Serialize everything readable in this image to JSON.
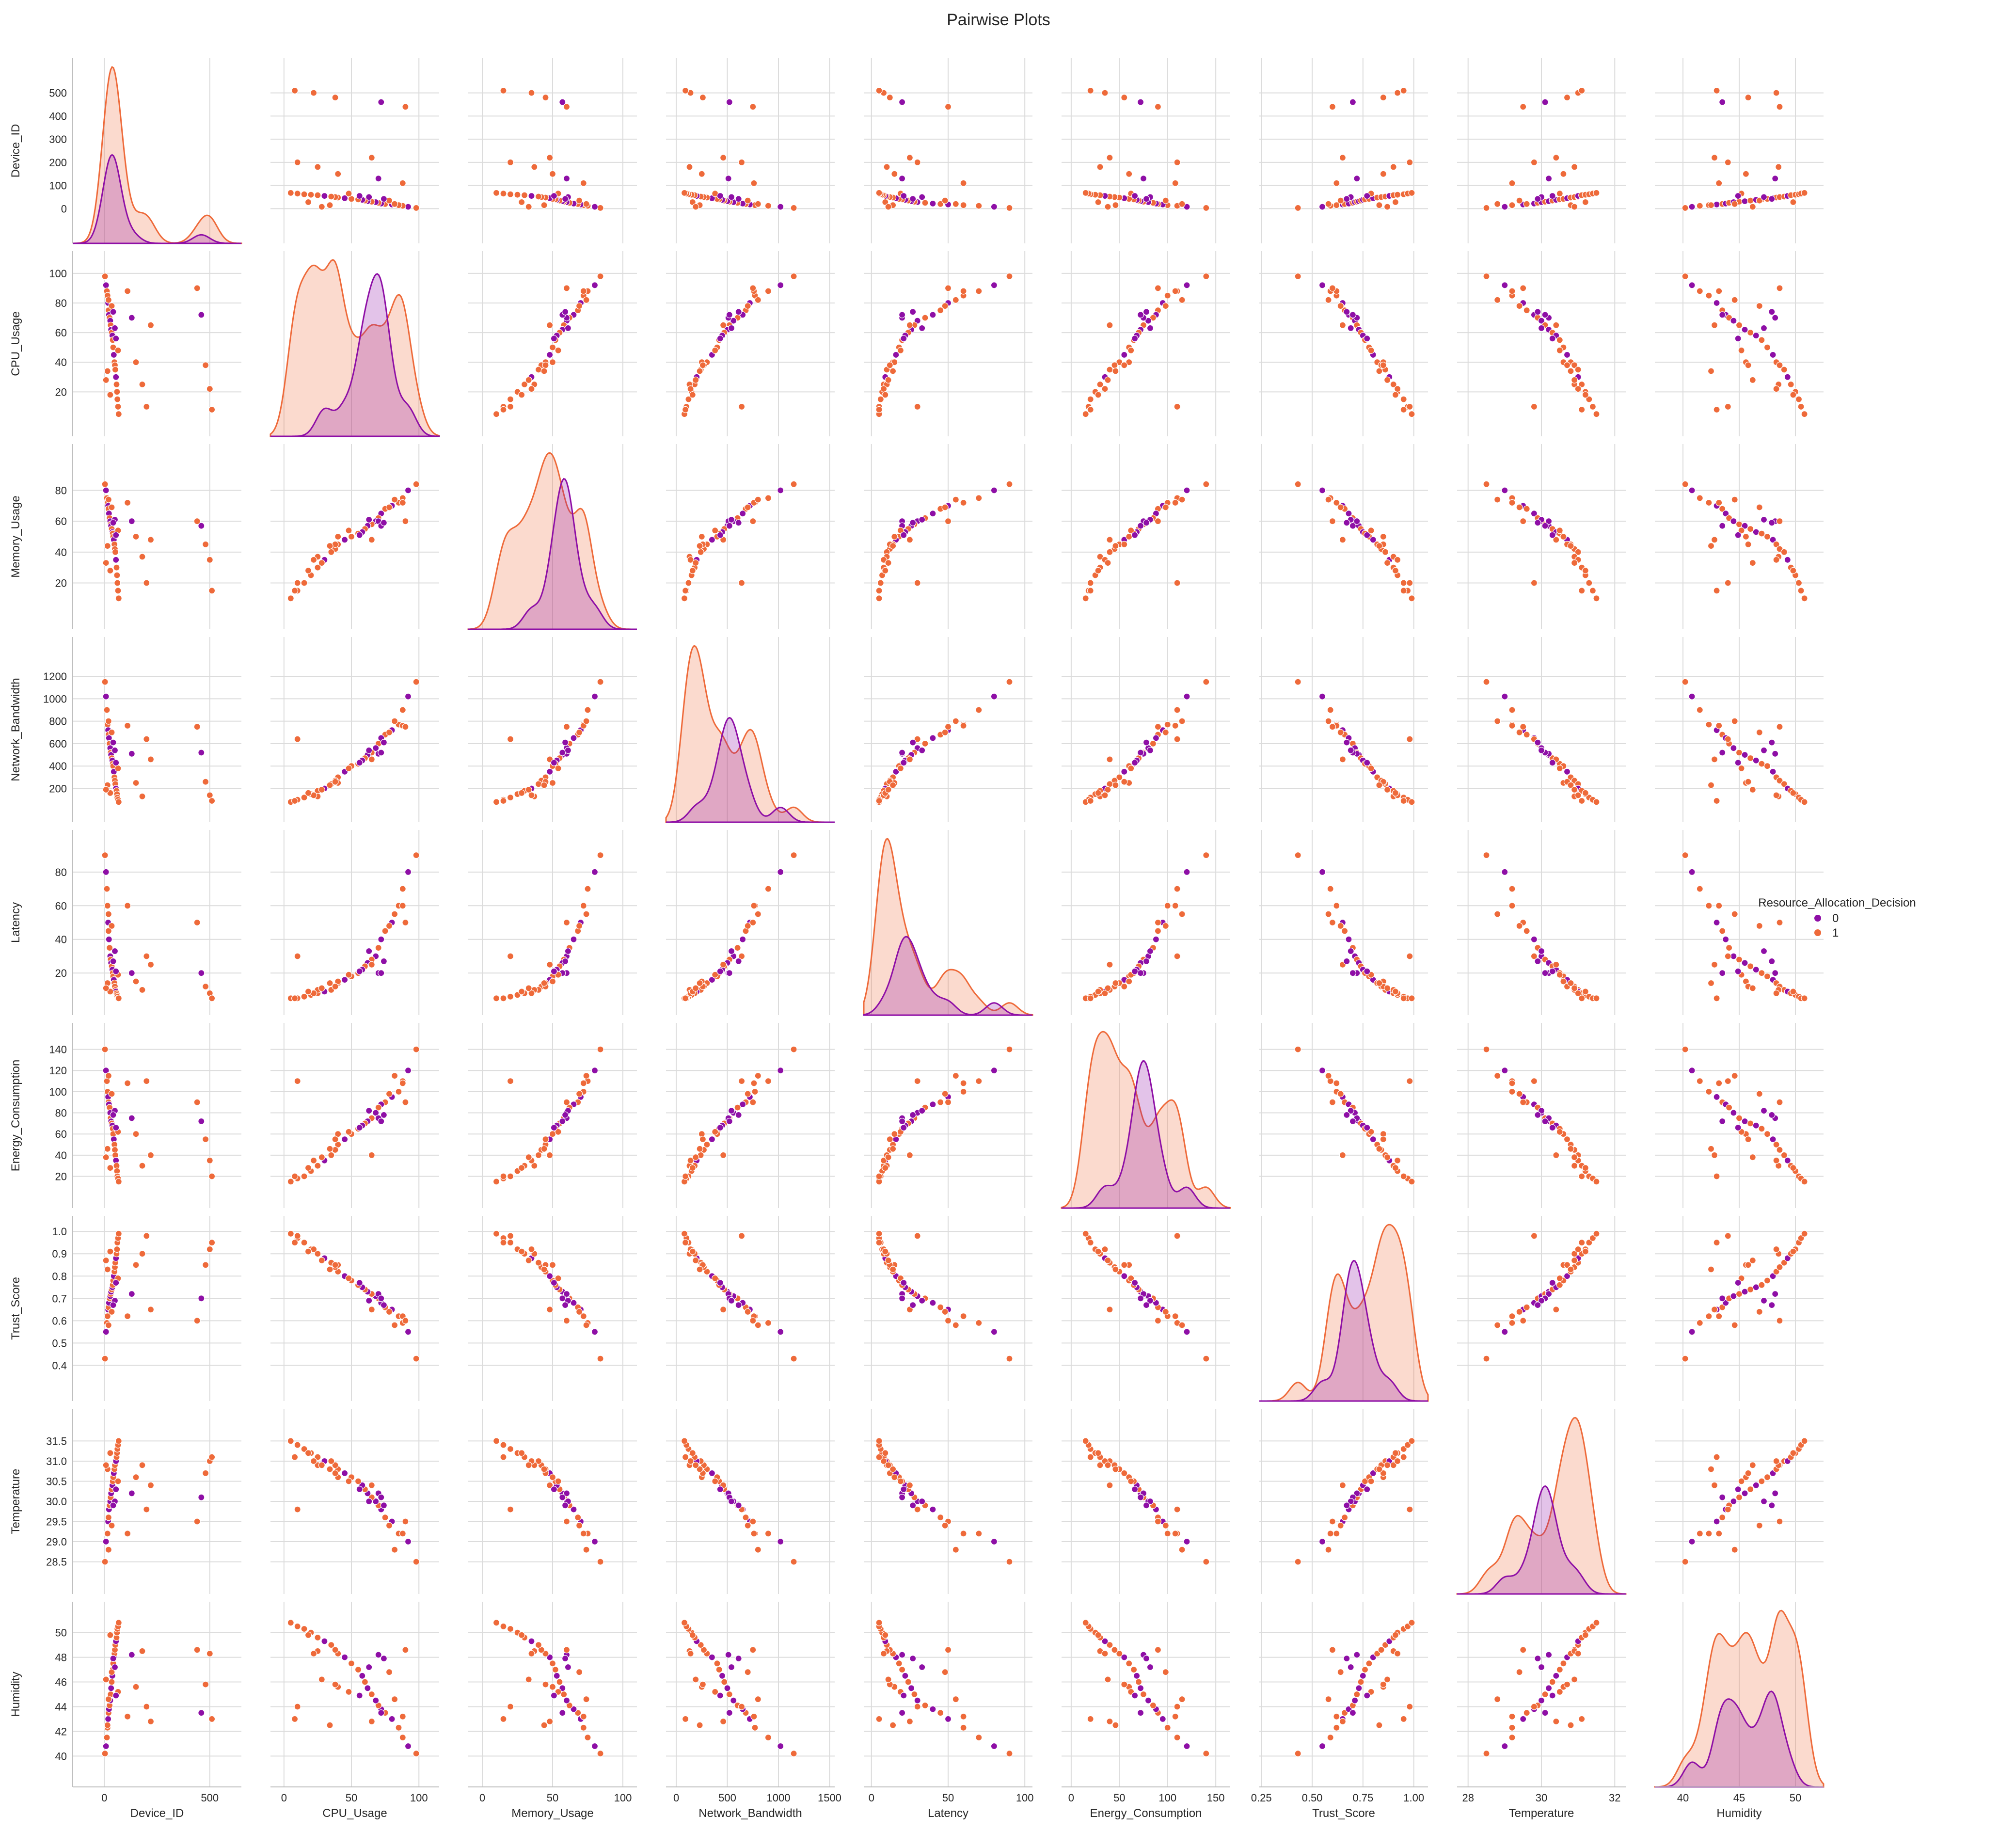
{
  "chart_data": {
    "type": "scatter",
    "title": "Pairwise Plots",
    "legend": {
      "title": "Resource_Allocation_Decision",
      "placement": "right",
      "entries": [
        {
          "label": "0",
          "color": "#8e0fa6"
        },
        {
          "label": "1",
          "color": "#ee6a3a"
        }
      ]
    },
    "grid": true,
    "diagonal": "kde",
    "variables": [
      {
        "name": "Device_ID",
        "lim": [
          -150,
          650
        ],
        "ticks": [
          0,
          500
        ],
        "tick_labels": [
          "0",
          "500"
        ],
        "yticks": [
          0,
          100,
          200,
          300,
          400,
          500
        ]
      },
      {
        "name": "CPU_Usage",
        "lim": [
          -10,
          115
        ],
        "ticks": [
          0,
          50,
          100
        ],
        "tick_labels": [
          "0",
          "50",
          "100"
        ],
        "yticks": [
          20,
          40,
          60,
          80,
          100
        ]
      },
      {
        "name": "Memory_Usage",
        "lim": [
          -10,
          110
        ],
        "ticks": [
          0,
          50,
          100
        ],
        "tick_labels": [
          "0",
          "50",
          "100"
        ],
        "yticks": [
          20,
          40,
          60,
          80
        ]
      },
      {
        "name": "Network_Bandwidth",
        "lim": [
          -100,
          1550
        ],
        "ticks": [
          0,
          500,
          1000,
          1500
        ],
        "tick_labels": [
          "0",
          "500",
          "1000",
          "1500"
        ],
        "yticks": [
          200,
          400,
          600,
          800,
          1000,
          1200
        ]
      },
      {
        "name": "Latency",
        "lim": [
          -5,
          105
        ],
        "ticks": [
          0,
          50,
          100
        ],
        "tick_labels": [
          "0",
          "50",
          "100"
        ],
        "yticks": [
          20,
          40,
          60,
          80
        ]
      },
      {
        "name": "Energy_Consumption",
        "lim": [
          -10,
          165
        ],
        "ticks": [
          0,
          50,
          100,
          150
        ],
        "tick_labels": [
          "0",
          "50",
          "100",
          "150"
        ],
        "yticks": [
          20,
          40,
          60,
          80,
          100,
          120,
          140
        ]
      },
      {
        "name": "Trust_Score",
        "lim": [
          0.24,
          1.07
        ],
        "ticks": [
          0.25,
          0.5,
          0.75,
          1.0
        ],
        "tick_labels": [
          "0.25",
          "0.50",
          "0.75",
          "1.00"
        ],
        "yticks": [
          0.4,
          0.5,
          0.6,
          0.7,
          0.8,
          0.9,
          1.0
        ],
        "ytick_labels": [
          "0.4",
          "0.5",
          "0.6",
          "0.7",
          "0.8",
          "0.9",
          "1.0"
        ]
      },
      {
        "name": "Temperature",
        "lim": [
          27.7,
          32.3
        ],
        "ticks": [
          28,
          30,
          32
        ],
        "tick_labels": [
          "28",
          "30",
          "32"
        ],
        "yticks": [
          28.5,
          29.0,
          29.5,
          30.0,
          30.5,
          31.0,
          31.5
        ],
        "ytick_labels": [
          "28.5",
          "29.0",
          "29.5",
          "30.0",
          "30.5",
          "31.0",
          "31.5"
        ]
      },
      {
        "name": "Humidity",
        "lim": [
          37.5,
          52.5
        ],
        "ticks": [
          40,
          45,
          50
        ],
        "tick_labels": [
          "40",
          "45",
          "50"
        ],
        "yticks": [
          40,
          42,
          44,
          46,
          48,
          50
        ]
      }
    ],
    "points": [
      {
        "v": [
          3,
          98,
          84,
          1150,
          90,
          140,
          0.43,
          28.5,
          40.2
        ],
        "c": 1
      },
      {
        "v": [
          8,
          92,
          80,
          1020,
          80,
          120,
          0.55,
          29.0,
          40.8
        ],
        "c": 0
      },
      {
        "v": [
          12,
          88,
          75,
          900,
          70,
          110,
          0.59,
          29.2,
          41.5
        ],
        "c": 1
      },
      {
        "v": [
          15,
          85,
          72,
          770,
          60,
          100,
          0.62,
          29.2,
          42.3
        ],
        "c": 1
      },
      {
        "v": [
          18,
          80,
          70,
          720,
          50,
          95,
          0.65,
          29.5,
          43.0
        ],
        "c": 0
      },
      {
        "v": [
          20,
          75,
          68,
          680,
          45,
          90,
          0.66,
          29.6,
          43.5
        ],
        "c": 1
      },
      {
        "v": [
          22,
          72,
          65,
          650,
          40,
          88,
          0.68,
          29.8,
          43.8
        ],
        "c": 0
      },
      {
        "v": [
          25,
          70,
          62,
          600,
          35,
          85,
          0.7,
          29.9,
          44.1
        ],
        "c": 1
      },
      {
        "v": [
          28,
          68,
          60,
          560,
          30,
          80,
          0.71,
          30.0,
          44.5
        ],
        "c": 0
      },
      {
        "v": [
          30,
          65,
          58,
          520,
          28,
          75,
          0.72,
          30.1,
          45.0
        ],
        "c": 1
      },
      {
        "v": [
          32,
          62,
          57,
          500,
          26,
          72,
          0.73,
          30.2,
          45.5
        ],
        "c": 0
      },
      {
        "v": [
          35,
          60,
          55,
          470,
          24,
          70,
          0.74,
          30.3,
          46.0
        ],
        "c": 1
      },
      {
        "v": [
          38,
          58,
          53,
          450,
          22,
          68,
          0.75,
          30.4,
          46.5
        ],
        "c": 0
      },
      {
        "v": [
          40,
          55,
          52,
          420,
          20,
          65,
          0.76,
          30.5,
          47.0
        ],
        "c": 1
      },
      {
        "v": [
          42,
          50,
          50,
          400,
          18,
          60,
          0.78,
          30.6,
          47.5
        ],
        "c": 1
      },
      {
        "v": [
          45,
          45,
          48,
          350,
          16,
          55,
          0.8,
          30.7,
          48.0
        ],
        "c": 0
      },
      {
        "v": [
          48,
          40,
          45,
          300,
          14,
          50,
          0.82,
          30.8,
          48.3
        ],
        "c": 1
      },
      {
        "v": [
          50,
          38,
          42,
          270,
          12,
          45,
          0.84,
          30.9,
          48.6
        ],
        "c": 1
      },
      {
        "v": [
          52,
          35,
          40,
          240,
          10,
          40,
          0.86,
          31.0,
          49.0
        ],
        "c": 1
      },
      {
        "v": [
          55,
          30,
          35,
          200,
          9,
          35,
          0.88,
          31.0,
          49.3
        ],
        "c": 0
      },
      {
        "v": [
          58,
          25,
          30,
          180,
          8,
          30,
          0.9,
          31.1,
          49.6
        ],
        "c": 1
      },
      {
        "v": [
          60,
          20,
          25,
          150,
          7,
          25,
          0.92,
          31.2,
          50.0
        ],
        "c": 1
      },
      {
        "v": [
          62,
          15,
          20,
          120,
          6,
          20,
          0.95,
          31.3,
          50.3
        ],
        "c": 1
      },
      {
        "v": [
          65,
          10,
          15,
          100,
          5,
          18,
          0.97,
          31.4,
          50.5
        ],
        "c": 1
      },
      {
        "v": [
          68,
          5,
          10,
          80,
          5,
          15,
          0.99,
          31.5,
          50.8
        ],
        "c": 1
      },
      {
        "v": [
          110,
          88,
          72,
          760,
          60,
          108,
          0.62,
          29.2,
          43.2
        ],
        "c": 1
      },
      {
        "v": [
          130,
          70,
          60,
          510,
          20,
          75,
          0.72,
          30.2,
          48.2
        ],
        "c": 0
      },
      {
        "v": [
          150,
          40,
          50,
          250,
          15,
          60,
          0.85,
          30.6,
          45.6
        ],
        "c": 1
      },
      {
        "v": [
          180,
          25,
          37,
          130,
          10,
          30,
          0.9,
          30.9,
          48.5
        ],
        "c": 1
      },
      {
        "v": [
          200,
          10,
          20,
          640,
          30,
          110,
          0.98,
          29.8,
          44.0
        ],
        "c": 1
      },
      {
        "v": [
          220,
          65,
          48,
          460,
          25,
          40,
          0.65,
          30.4,
          42.8
        ],
        "c": 1
      },
      {
        "v": [
          440,
          90,
          60,
          750,
          50,
          90,
          0.6,
          29.5,
          48.6
        ],
        "c": 1
      },
      {
        "v": [
          460,
          72,
          57,
          520,
          20,
          72,
          0.7,
          30.1,
          43.5
        ],
        "c": 0
      },
      {
        "v": [
          480,
          38,
          45,
          260,
          12,
          55,
          0.85,
          30.7,
          45.8
        ],
        "c": 1
      },
      {
        "v": [
          500,
          22,
          35,
          140,
          8,
          35,
          0.92,
          31.0,
          48.3
        ],
        "c": 1
      },
      {
        "v": [
          510,
          8,
          15,
          90,
          5,
          20,
          0.95,
          31.1,
          43.0
        ],
        "c": 1
      },
      {
        "v": [
          20,
          82,
          74,
          800,
          55,
          115,
          0.58,
          28.8,
          44.6
        ],
        "c": 1
      },
      {
        "v": [
          35,
          78,
          69,
          700,
          48,
          98,
          0.64,
          29.4,
          46.8
        ],
        "c": 1
      },
      {
        "v": [
          50,
          63,
          61,
          540,
          33,
          82,
          0.69,
          30.0,
          47.2
        ],
        "c": 0
      },
      {
        "v": [
          65,
          48,
          54,
          380,
          19,
          62,
          0.79,
          30.5,
          45.2
        ],
        "c": 1
      },
      {
        "v": [
          15,
          34,
          44,
          230,
          14,
          46,
          0.83,
          30.8,
          42.5
        ],
        "c": 1
      },
      {
        "v": [
          28,
          18,
          28,
          160,
          9,
          28,
          0.91,
          31.2,
          49.8
        ],
        "c": 1
      },
      {
        "v": [
          42,
          74,
          59,
          610,
          27,
          78,
          0.67,
          29.9,
          47.9
        ],
        "c": 0
      },
      {
        "v": [
          55,
          56,
          51,
          430,
          21,
          66,
          0.77,
          30.3,
          44.9
        ],
        "c": 0
      },
      {
        "v": [
          8,
          28,
          33,
          190,
          11,
          38,
          0.87,
          30.9,
          46.2
        ],
        "c": 1
      }
    ]
  }
}
